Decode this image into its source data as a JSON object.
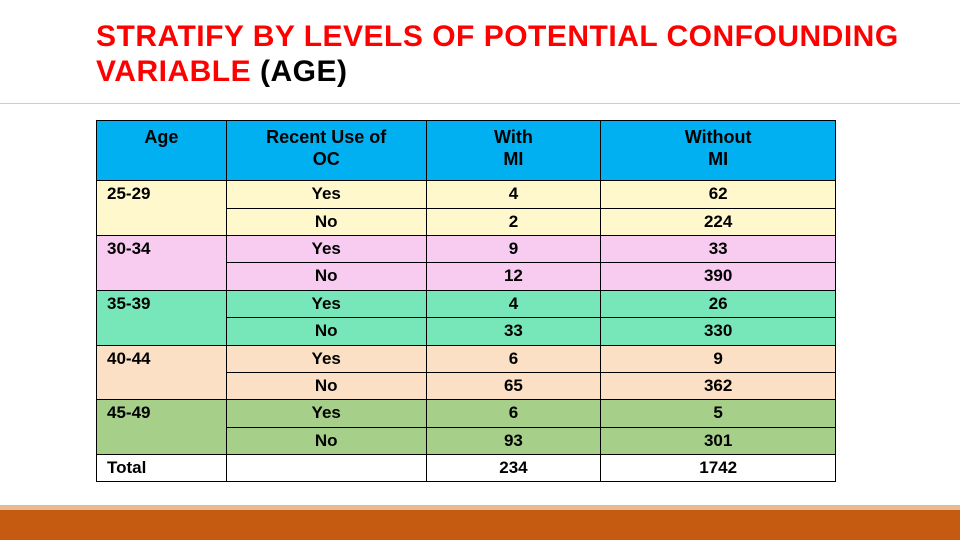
{
  "title_part1": "STRATIFY BY LEVELS OF POTENTIAL CONFOUNDING VARIABLE ",
  "title_part2": "(AGE)",
  "table": {
    "headers": {
      "age": "Age",
      "oc": "Recent Use of OC",
      "with": "With MI",
      "without": "Without MI"
    },
    "header_bg": "#00b0f0",
    "groups": [
      {
        "age": "25-29",
        "bg": "#fff8cc",
        "rows": [
          {
            "oc": "Yes",
            "with": "4",
            "without": "62"
          },
          {
            "oc": "No",
            "with": "2",
            "without": "224"
          }
        ]
      },
      {
        "age": "30-34",
        "bg": "#f8ccf0",
        "rows": [
          {
            "oc": "Yes",
            "with": "9",
            "without": "33"
          },
          {
            "oc": "No",
            "with": "12",
            "without": "390"
          }
        ]
      },
      {
        "age": "35-39",
        "bg": "#77e7b9",
        "rows": [
          {
            "oc": "Yes",
            "with": "4",
            "without": "26"
          },
          {
            "oc": "No",
            "with": "33",
            "without": "330"
          }
        ]
      },
      {
        "age": "40-44",
        "bg": "#fbe0c5",
        "rows": [
          {
            "oc": "Yes",
            "with": "6",
            "without": "9"
          },
          {
            "oc": "No",
            "with": "65",
            "without": "362"
          }
        ]
      },
      {
        "age": "45-49",
        "bg": "#a6cf8a",
        "rows": [
          {
            "oc": "Yes",
            "with": "6",
            "without": "5"
          },
          {
            "oc": "No",
            "with": "93",
            "without": "301"
          }
        ]
      }
    ],
    "total": {
      "label": "Total",
      "with": "234",
      "without": "1742"
    }
  },
  "accent_bar_color": "#c55a11"
}
